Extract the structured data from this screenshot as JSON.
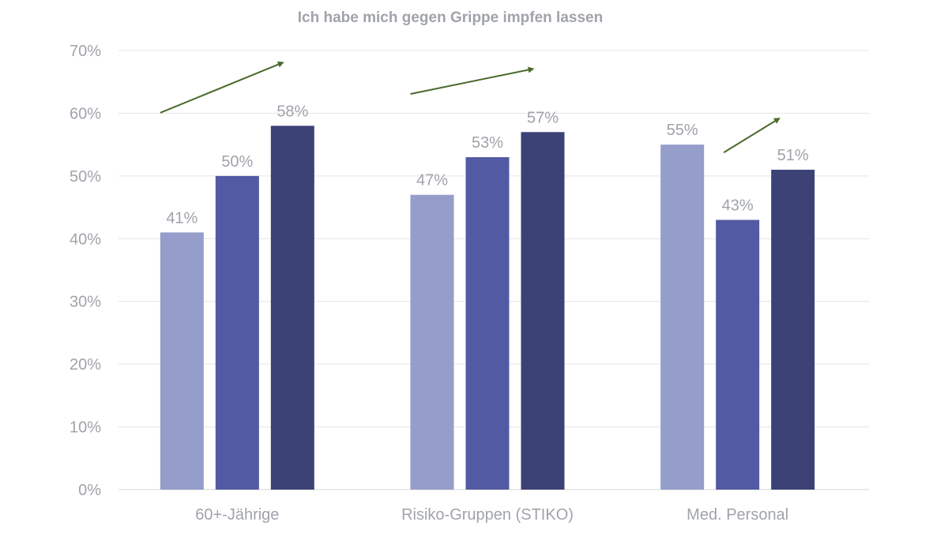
{
  "chart_data": {
    "type": "bar",
    "title": "Ich habe mich gegen Grippe impfen lassen",
    "xlabel": "",
    "ylabel": "",
    "ylim": [
      0,
      70
    ],
    "yticks": [
      "0%",
      "10%",
      "20%",
      "30%",
      "40%",
      "50%",
      "60%",
      "70%"
    ],
    "ytick_values": [
      0,
      10,
      20,
      30,
      40,
      50,
      60,
      70
    ],
    "grid": true,
    "legend": "none",
    "categories": [
      "60+-Jährige",
      "Risiko-Gruppen (STIKO)",
      "Med. Personal"
    ],
    "series": [
      {
        "values": [
          41,
          47,
          55
        ],
        "labels": [
          "41%",
          "47%",
          "55%"
        ],
        "color": "#959dcb"
      },
      {
        "values": [
          50,
          53,
          43
        ],
        "labels": [
          "50%",
          "53%",
          "43%"
        ],
        "color": "#525aa3"
      },
      {
        "values": [
          58,
          57,
          51
        ],
        "labels": [
          "58%",
          "57%",
          "51%"
        ],
        "color": "#3c4276"
      }
    ],
    "annotations": [
      {
        "type": "trend-arrow",
        "category": "60+-Jährige",
        "direction": "up"
      },
      {
        "type": "trend-arrow",
        "category": "Risiko-Gruppen (STIKO)",
        "direction": "up"
      },
      {
        "type": "trend-arrow",
        "category": "Med. Personal",
        "direction": "up"
      }
    ],
    "colors": {
      "text": "#a0a3aa",
      "grid": "#e4e4e4",
      "arrow": "#4b6a2c"
    }
  }
}
